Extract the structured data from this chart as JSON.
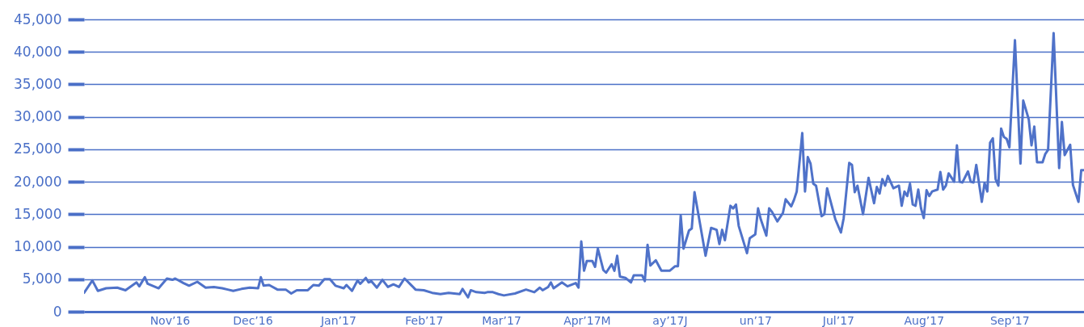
{
  "chart_data": {
    "type": "line",
    "x": [
      "2016-10-15",
      "2016-10-18",
      "2016-10-20",
      "2016-10-23",
      "2016-10-27",
      "2016-10-30",
      "2016-11-03",
      "2016-11-04",
      "2016-11-06",
      "2016-11-07",
      "2016-11-11",
      "2016-11-14",
      "2016-11-16",
      "2016-11-17",
      "2016-11-20",
      "2016-11-22",
      "2016-11-25",
      "2016-11-28",
      "2016-12-01",
      "2016-12-04",
      "2016-12-06",
      "2016-12-08",
      "2016-12-11",
      "2016-12-14",
      "2016-12-17",
      "2016-12-18",
      "2016-12-19",
      "2016-12-21",
      "2016-12-24",
      "2016-12-27",
      "2016-12-29",
      "2016-12-31",
      "2017-01-04",
      "2017-01-06",
      "2017-01-08",
      "2017-01-10",
      "2017-01-12",
      "2017-01-14",
      "2017-01-17",
      "2017-01-18",
      "2017-01-20",
      "2017-01-22",
      "2017-01-23",
      "2017-01-25",
      "2017-01-26",
      "2017-01-27",
      "2017-01-29",
      "2017-01-31",
      "2017-02-02",
      "2017-02-04",
      "2017-02-06",
      "2017-02-08",
      "2017-02-09",
      "2017-02-12",
      "2017-02-15",
      "2017-02-18",
      "2017-02-21",
      "2017-02-24",
      "2017-02-28",
      "2017-03-01",
      "2017-03-03",
      "2017-03-04",
      "2017-03-06",
      "2017-03-09",
      "2017-03-10",
      "2017-03-12",
      "2017-03-14",
      "2017-03-16",
      "2017-03-20",
      "2017-03-24",
      "2017-03-27",
      "2017-03-29",
      "2017-03-30",
      "2017-04-01",
      "2017-04-02",
      "2017-04-03",
      "2017-04-06",
      "2017-04-08",
      "2017-04-11",
      "2017-04-12",
      "2017-04-13",
      "2017-04-14",
      "2017-04-15",
      "2017-04-17",
      "2017-04-18",
      "2017-04-19",
      "2017-04-21",
      "2017-04-22",
      "2017-04-24",
      "2017-04-25",
      "2017-04-26",
      "2017-04-27",
      "2017-04-29",
      "2017-05-01",
      "2017-05-02",
      "2017-05-05",
      "2017-05-06",
      "2017-05-07",
      "2017-05-08",
      "2017-05-10",
      "2017-05-12",
      "2017-05-15",
      "2017-05-17",
      "2017-05-18",
      "2017-05-19",
      "2017-05-20",
      "2017-05-22",
      "2017-05-23",
      "2017-05-24",
      "2017-05-28",
      "2017-05-30",
      "2017-06-01",
      "2017-06-02",
      "2017-06-03",
      "2017-06-04",
      "2017-06-06",
      "2017-06-07",
      "2017-06-08",
      "2017-06-09",
      "2017-06-12",
      "2017-06-13",
      "2017-06-15",
      "2017-06-16",
      "2017-06-17",
      "2017-06-19",
      "2017-06-20",
      "2017-06-21",
      "2017-06-23",
      "2017-06-25",
      "2017-06-26",
      "2017-06-28",
      "2017-06-29",
      "2017-06-30",
      "2017-07-02",
      "2017-07-03",
      "2017-07-04",
      "2017-07-05",
      "2017-07-06",
      "2017-07-07",
      "2017-07-09",
      "2017-07-10",
      "2017-07-11",
      "2017-07-14",
      "2017-07-16",
      "2017-07-17",
      "2017-07-19",
      "2017-07-20",
      "2017-07-21",
      "2017-07-22",
      "2017-07-24",
      "2017-07-26",
      "2017-07-28",
      "2017-07-29",
      "2017-07-30",
      "2017-07-31",
      "2017-08-01",
      "2017-08-02",
      "2017-08-04",
      "2017-08-06",
      "2017-08-07",
      "2017-08-08",
      "2017-08-09",
      "2017-08-10",
      "2017-08-11",
      "2017-08-12",
      "2017-08-13",
      "2017-08-14",
      "2017-08-15",
      "2017-08-16",
      "2017-08-17",
      "2017-08-18",
      "2017-08-20",
      "2017-08-21",
      "2017-08-22",
      "2017-08-23",
      "2017-08-24",
      "2017-08-26",
      "2017-08-27",
      "2017-08-28",
      "2017-08-29",
      "2017-08-31",
      "2017-09-01",
      "2017-09-02",
      "2017-09-03",
      "2017-09-05",
      "2017-09-06",
      "2017-09-07",
      "2017-09-08",
      "2017-09-09",
      "2017-09-10",
      "2017-09-11",
      "2017-09-12",
      "2017-09-13",
      "2017-09-14",
      "2017-09-15",
      "2017-09-17",
      "2017-09-19",
      "2017-09-20",
      "2017-09-22",
      "2017-09-23",
      "2017-09-24",
      "2017-09-25",
      "2017-09-27",
      "2017-09-28",
      "2017-09-29",
      "2017-10-01",
      "2017-10-03",
      "2017-10-04",
      "2017-10-05",
      "2017-10-07",
      "2017-10-08",
      "2017-10-10",
      "2017-10-11",
      "2017-10-12"
    ],
    "series": [
      {
        "color": "#4f72c9",
        "values": [
          2900,
          4800,
          3200,
          3600,
          3700,
          3300,
          4500,
          3900,
          5300,
          4300,
          3600,
          5100,
          4900,
          5100,
          4400,
          4000,
          4600,
          3700,
          3800,
          3600,
          3400,
          3200,
          3500,
          3700,
          3600,
          5300,
          4000,
          4100,
          3400,
          3400,
          2800,
          3300,
          3300,
          4100,
          4000,
          5000,
          5000,
          4000,
          3600,
          4100,
          3200,
          4800,
          4300,
          5200,
          4500,
          4700,
          3700,
          4900,
          3800,
          4200,
          3800,
          5100,
          4700,
          3400,
          3300,
          2900,
          2700,
          2900,
          2700,
          3500,
          2200,
          3300,
          3000,
          2900,
          3000,
          3000,
          2700,
          2500,
          2800,
          3400,
          3000,
          3700,
          3300,
          3800,
          4500,
          3600,
          4500,
          3900,
          4400,
          3700,
          10800,
          6300,
          7800,
          7800,
          6900,
          9700,
          6400,
          6000,
          7300,
          6300,
          8600,
          5400,
          5200,
          4500,
          5600,
          5600,
          4700,
          10300,
          7100,
          7900,
          6300,
          6300,
          7000,
          7000,
          14800,
          9700,
          12500,
          12800,
          18400,
          8600,
          12900,
          12600,
          10400,
          12600,
          11000,
          16300,
          15900,
          16500,
          13200,
          9000,
          11300,
          11900,
          15900,
          14200,
          11700,
          15900,
          15400,
          13900,
          15200,
          17300,
          16200,
          17200,
          18500,
          27500,
          18500,
          23800,
          22800,
          19700,
          19400,
          14700,
          15000,
          19000,
          14200,
          12200,
          14400,
          22900,
          22600,
          18400,
          19400,
          15000,
          20600,
          16700,
          19200,
          18200,
          20400,
          19400,
          20900,
          19000,
          19400,
          16300,
          18500,
          17800,
          19700,
          16500,
          16300,
          18800,
          15900,
          14400,
          18700,
          17800,
          18500,
          18800,
          21500,
          18800,
          19400,
          21300,
          20000,
          25600,
          20000,
          19900,
          21600,
          20000,
          19900,
          22600,
          16900,
          19800,
          18500,
          26000,
          26700,
          20400,
          19400,
          28200,
          26900,
          26600,
          25300,
          41800,
          22800,
          32500,
          29600,
          25600,
          28500,
          23000,
          23000,
          24300,
          24900,
          42900,
          22100,
          29200,
          24100,
          25700,
          19500,
          16900,
          21800,
          21800
        ]
      }
    ],
    "xlim": [
      "2016-10-15",
      "2017-10-12"
    ],
    "xticks": [
      {
        "value": "2016-11-15",
        "label": "Nov’16"
      },
      {
        "value": "2016-12-15",
        "label": "Dec’16"
      },
      {
        "value": "2017-01-15",
        "label": "Jan’17"
      },
      {
        "value": "2017-02-15",
        "label": "Feb’17"
      },
      {
        "value": "2017-03-15",
        "label": "Mar’17"
      },
      {
        "value": "2017-04-15",
        "label": "Apr’17M"
      },
      {
        "value": "2017-05-15",
        "label": "ay’17J"
      },
      {
        "value": "2017-06-15",
        "label": "un’17"
      },
      {
        "value": "2017-07-15",
        "label": "Jul’17"
      },
      {
        "value": "2017-08-15",
        "label": "Aug’17"
      },
      {
        "value": "2017-09-15",
        "label": "Sep’17"
      }
    ],
    "ylim": [
      0,
      45000
    ],
    "yticks": [
      0,
      {
        "value": 5000,
        "label": "5,000"
      },
      {
        "value": 10000,
        "label": "10,000"
      },
      {
        "value": 15000,
        "label": "15,000"
      },
      {
        "value": 20000,
        "label": "20,000"
      },
      {
        "value": 25000,
        "label": "25,000"
      },
      {
        "value": 30000,
        "label": "30,000"
      },
      {
        "value": 35000,
        "label": "35,000"
      },
      {
        "value": 40000,
        "label": "40,000"
      },
      {
        "value": 45000,
        "label": "45,000"
      }
    ],
    "grid": "y",
    "marker": "none",
    "line_style": "solid"
  }
}
